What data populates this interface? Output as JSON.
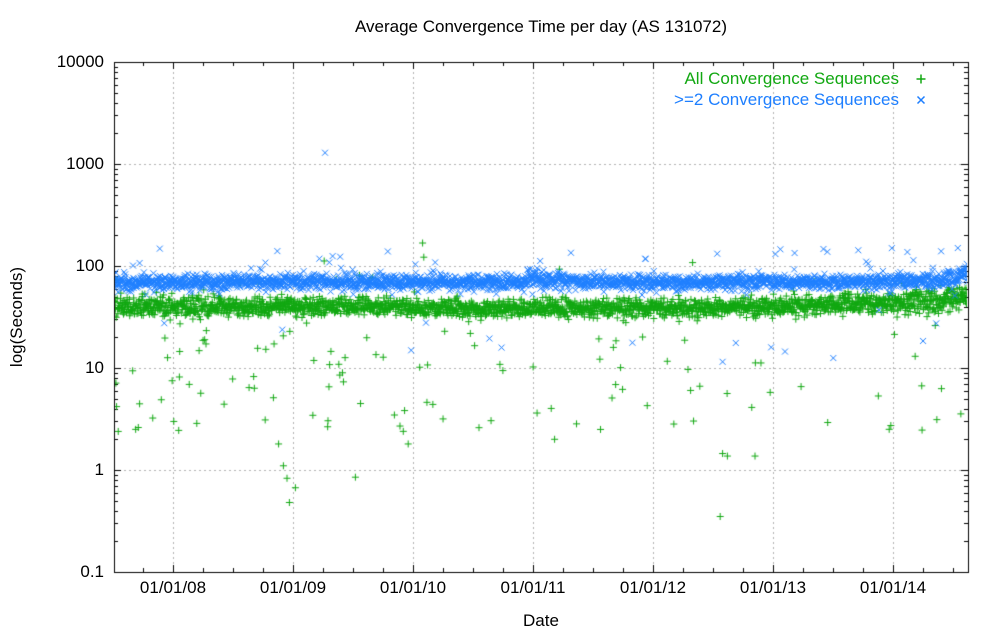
{
  "chart_data": {
    "type": "scatter",
    "title": "Average Convergence Time per day (AS 131072)",
    "xlabel": "Date",
    "ylabel": "log(Seconds)",
    "y_scale": "log10",
    "ylim": [
      0.1,
      10000
    ],
    "xlim_years": [
      2007.508,
      2014.625
    ],
    "grid": {
      "shown": true,
      "style": "dashed",
      "color": "#b2b2b2"
    },
    "frame_color": "#000000",
    "y_major_ticks": [
      {
        "label": "10000",
        "value": 10000
      },
      {
        "label": "1000",
        "value": 1000
      },
      {
        "label": "100",
        "value": 100
      },
      {
        "label": "10",
        "value": 10
      },
      {
        "label": "1",
        "value": 1
      },
      {
        "label": "0.1",
        "value": 0.1
      }
    ],
    "y_minor_ticks": "log minors 2-9 per decade",
    "x_major_ticks": [
      {
        "label": "01/01/08",
        "year": 2008
      },
      {
        "label": "01/01/09",
        "year": 2009
      },
      {
        "label": "01/01/10",
        "year": 2010
      },
      {
        "label": "01/01/11",
        "year": 2011
      },
      {
        "label": "01/01/12",
        "year": 2012
      },
      {
        "label": "01/01/13",
        "year": 2013
      },
      {
        "label": "01/01/14",
        "year": 2014
      }
    ],
    "x_minor_tick_interval_years": 0.25,
    "legend": {
      "position": "top-right-inside",
      "entries": [
        {
          "label": "All Convergence Sequences",
          "marker": "plus",
          "color": "#12a812"
        },
        {
          "label": ">=2 Convergence Sequences",
          "marker": "cross",
          "color": "#1e7fff"
        }
      ]
    },
    "series": [
      {
        "name": "All Convergence Sequences",
        "marker": "plus",
        "color": "#12a812",
        "cadence": "daily",
        "band_center_log10_by_year": [
          [
            2007.51,
            1.615
          ],
          [
            2008.5,
            1.595
          ],
          [
            2009.5,
            1.6
          ],
          [
            2010.5,
            1.58
          ],
          [
            2011.5,
            1.585
          ],
          [
            2012.5,
            1.59
          ],
          [
            2013.0,
            1.6
          ],
          [
            2013.6,
            1.625
          ],
          [
            2014.0,
            1.645
          ],
          [
            2014.4,
            1.66
          ],
          [
            2014.63,
            1.72
          ]
        ],
        "band_sd_log10": 0.046,
        "sd_boost": [
          [
            2007.5,
            2008.4,
            1.25
          ],
          [
            2013.9,
            2014.63,
            1.3
          ]
        ],
        "low_tail": {
          "periods": [
            [
              2007.5,
              2010.5,
              0.06
            ],
            [
              2010.5,
              2012.0,
              0.034
            ],
            [
              2012.0,
              2014.63,
              0.016
            ]
          ],
          "log10_range": [
            0.32,
            1.45
          ]
        },
        "high_tail": {
          "probability": 0.004,
          "log10_range": [
            1.83,
            2.02
          ]
        },
        "outliers": [
          [
            2010.08,
            168
          ],
          [
            2010.09,
            122
          ],
          [
            2012.33,
            108
          ],
          [
            2011.22,
            93
          ],
          [
            2009.26,
            112
          ],
          [
            2009.36,
            74
          ],
          [
            2008.88,
            1.8
          ],
          [
            2008.92,
            1.1
          ],
          [
            2008.95,
            0.83
          ],
          [
            2009.02,
            0.67
          ],
          [
            2008.97,
            0.48
          ],
          [
            2009.52,
            0.85
          ],
          [
            2009.96,
            1.8
          ],
          [
            2012.58,
            1.45
          ],
          [
            2012.62,
            1.37
          ],
          [
            2012.85,
            1.37
          ],
          [
            2012.56,
            0.35
          ],
          [
            2010.55,
            2.6
          ],
          [
            2011.18,
            2.0
          ]
        ]
      },
      {
        "name": ">=2 Convergence Sequences",
        "marker": "cross",
        "color": "#1e7fff",
        "cadence": "daily",
        "band_center_log10_by_year": [
          [
            2007.51,
            1.83
          ],
          [
            2008.0,
            1.84
          ],
          [
            2009.0,
            1.845
          ],
          [
            2010.0,
            1.835
          ],
          [
            2011.0,
            1.845
          ],
          [
            2011.02,
            1.91
          ],
          [
            2011.08,
            1.85
          ],
          [
            2012.0,
            1.84
          ],
          [
            2013.0,
            1.845
          ],
          [
            2014.0,
            1.85
          ],
          [
            2014.45,
            1.86
          ],
          [
            2014.56,
            1.9
          ],
          [
            2014.63,
            1.92
          ]
        ],
        "band_sd_log10": 0.038,
        "sd_boost": [
          [
            2010.95,
            2011.15,
            1.25
          ],
          [
            2014.45,
            2014.63,
            1.5
          ]
        ],
        "low_tail": {
          "periods": [
            [
              2007.5,
              2014.63,
              0.0035
            ]
          ],
          "log10_range": [
            1.08,
            1.58
          ]
        },
        "high_tail": {
          "probability": 0.013,
          "log10_range": [
            1.95,
            2.18
          ]
        },
        "outliers": [
          [
            2009.267,
            1290
          ],
          [
            2007.89,
            148
          ],
          [
            2009.22,
            118
          ],
          [
            2009.33,
            125
          ],
          [
            2009.4,
            96
          ],
          [
            2013.02,
            131
          ],
          [
            2013.18,
            134
          ],
          [
            2014.12,
            137
          ],
          [
            2014.17,
            114
          ],
          [
            2014.54,
            150
          ],
          [
            2011.06,
            112
          ],
          [
            2010.02,
            104
          ],
          [
            2008.77,
            108
          ],
          [
            2012.69,
            17.6
          ],
          [
            2013.1,
            14.5
          ],
          [
            2012.58,
            11.5
          ]
        ]
      }
    ]
  }
}
